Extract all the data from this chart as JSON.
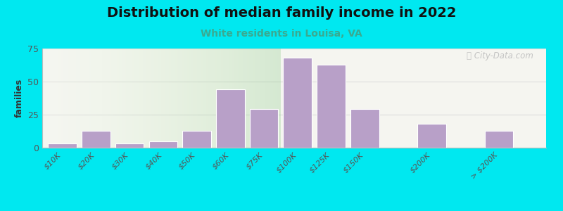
{
  "title": "Distribution of median family income in 2022",
  "subtitle": "White residents in Louisa, VA",
  "ylabel": "families",
  "bar_labels": [
    "$10K",
    "$20K",
    "$30K",
    "$40K",
    "$50K",
    "$60K",
    "$75K",
    "$100K",
    "$125K",
    "$150K",
    "$200K",
    "> $200K"
  ],
  "bar_positions": [
    0,
    1,
    2,
    3,
    4,
    5,
    6,
    7,
    8,
    9,
    11,
    13
  ],
  "bar_values": [
    3,
    13,
    3,
    5,
    13,
    44,
    29,
    68,
    63,
    29,
    18,
    13
  ],
  "bar_width": 0.85,
  "bar_color": "#b8a0c8",
  "bar_edgecolor": "#ffffff",
  "background_outer": "#00e8f0",
  "background_inner_right": "#f5f5f0",
  "green_bg_color": "#ddeedd",
  "green_bg_end_x": 6.5,
  "xlim": [
    -0.6,
    14.4
  ],
  "ylim": [
    0,
    75
  ],
  "yticks": [
    0,
    25,
    50,
    75
  ],
  "title_fontsize": 14,
  "subtitle_fontsize": 10,
  "subtitle_color": "#3aaa90",
  "ylabel_fontsize": 9,
  "tick_fontsize": 8,
  "watermark_text": "City-Data.com",
  "watermark_color": "#bbbbbb",
  "grid_color": "#dddddd"
}
